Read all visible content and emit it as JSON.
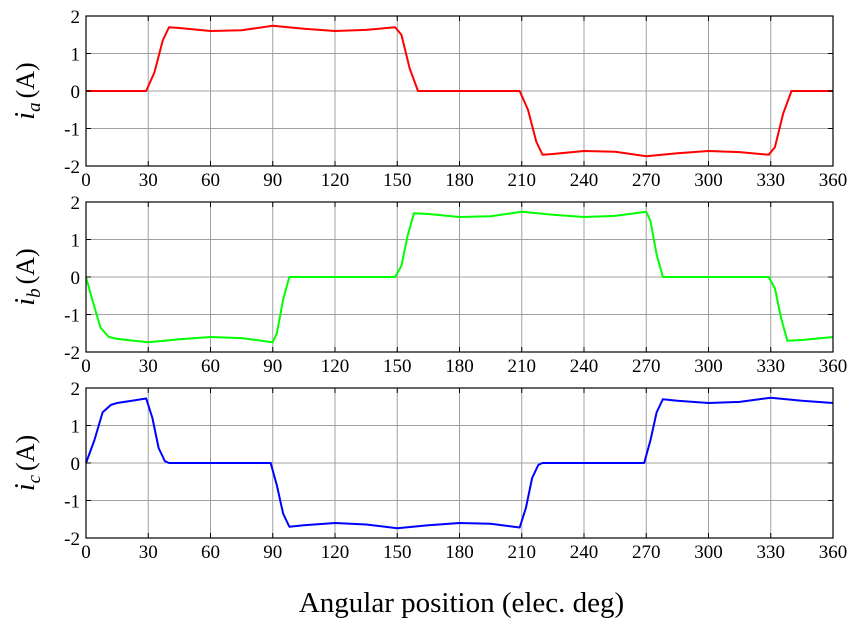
{
  "chart_data": [
    {
      "type": "line",
      "ylabel": {
        "symbol": "i",
        "subscript": "a",
        "unit": "(A)"
      },
      "xlabel": "",
      "xlim": [
        0,
        360
      ],
      "ylim": [
        -2,
        2
      ],
      "xticks": [
        "0",
        "30",
        "60",
        "90",
        "120",
        "150",
        "180",
        "210",
        "240",
        "270",
        "300",
        "330",
        "360"
      ],
      "yticks": [
        "2",
        "1",
        "0",
        "-1",
        "-2"
      ],
      "grid": true,
      "series": [
        {
          "color": "#ff0000",
          "x": [
            0,
            29,
            33,
            37,
            40,
            45,
            60,
            75,
            90,
            105,
            120,
            135,
            149,
            152,
            156,
            160,
            180,
            209,
            213,
            217,
            220,
            225,
            240,
            255,
            270,
            285,
            300,
            315,
            329,
            332,
            336,
            340,
            360
          ],
          "y": [
            0,
            0,
            0.5,
            1.35,
            1.7,
            1.68,
            1.6,
            1.62,
            1.74,
            1.66,
            1.6,
            1.63,
            1.7,
            1.5,
            0.6,
            0,
            0,
            0,
            -0.5,
            -1.35,
            -1.7,
            -1.68,
            -1.6,
            -1.62,
            -1.74,
            -1.66,
            -1.6,
            -1.63,
            -1.7,
            -1.5,
            -0.6,
            0,
            0
          ]
        }
      ]
    },
    {
      "type": "line",
      "ylabel": {
        "symbol": "i",
        "subscript": "b",
        "unit": "(A)"
      },
      "xlabel": "",
      "xlim": [
        0,
        360
      ],
      "ylim": [
        -2,
        2
      ],
      "xticks": [
        "0",
        "30",
        "60",
        "90",
        "120",
        "150",
        "180",
        "210",
        "240",
        "270",
        "300",
        "330",
        "360"
      ],
      "yticks": [
        "2",
        "1",
        "0",
        "-1",
        "-2"
      ],
      "grid": true,
      "series": [
        {
          "color": "#00ff00",
          "x": [
            0,
            3,
            7,
            11,
            15,
            30,
            45,
            60,
            75,
            90,
            92,
            95,
            98,
            120,
            149,
            152,
            155,
            158,
            165,
            180,
            195,
            210,
            225,
            240,
            255,
            270,
            272,
            275,
            278,
            300,
            329,
            332,
            335,
            338,
            345,
            360
          ],
          "y": [
            0,
            -0.6,
            -1.35,
            -1.6,
            -1.65,
            -1.74,
            -1.66,
            -1.6,
            -1.63,
            -1.74,
            -1.5,
            -0.6,
            0,
            0,
            0,
            0.3,
            1.1,
            1.7,
            1.68,
            1.6,
            1.62,
            1.74,
            1.66,
            1.6,
            1.63,
            1.74,
            1.5,
            0.6,
            0,
            0,
            0,
            -0.3,
            -1.1,
            -1.7,
            -1.68,
            -1.6
          ]
        }
      ]
    },
    {
      "type": "line",
      "ylabel": {
        "symbol": "i",
        "subscript": "c",
        "unit": "(A)"
      },
      "xlabel": "Angular position (elec. deg)",
      "xlim": [
        0,
        360
      ],
      "ylim": [
        -2,
        2
      ],
      "xticks": [
        "0",
        "30",
        "60",
        "90",
        "120",
        "150",
        "180",
        "210",
        "240",
        "270",
        "300",
        "330",
        "360"
      ],
      "yticks": [
        "2",
        "1",
        "0",
        "-1",
        "-2"
      ],
      "grid": true,
      "series": [
        {
          "color": "#0000ff",
          "x": [
            0,
            4,
            8,
            12,
            15,
            29,
            32,
            35,
            38,
            40,
            60,
            89,
            92,
            95,
            98,
            105,
            120,
            135,
            150,
            165,
            180,
            195,
            209,
            212,
            215,
            218,
            220,
            240,
            269,
            272,
            275,
            278,
            285,
            300,
            315,
            330,
            345,
            360
          ],
          "y": [
            0,
            0.6,
            1.35,
            1.55,
            1.6,
            1.72,
            1.2,
            0.4,
            0.05,
            0,
            0,
            0,
            -0.6,
            -1.35,
            -1.7,
            -1.66,
            -1.6,
            -1.64,
            -1.74,
            -1.66,
            -1.6,
            -1.62,
            -1.72,
            -1.2,
            -0.4,
            -0.05,
            0,
            0,
            0,
            0.6,
            1.35,
            1.7,
            1.66,
            1.6,
            1.63,
            1.74,
            1.66,
            1.6
          ]
        }
      ]
    }
  ]
}
